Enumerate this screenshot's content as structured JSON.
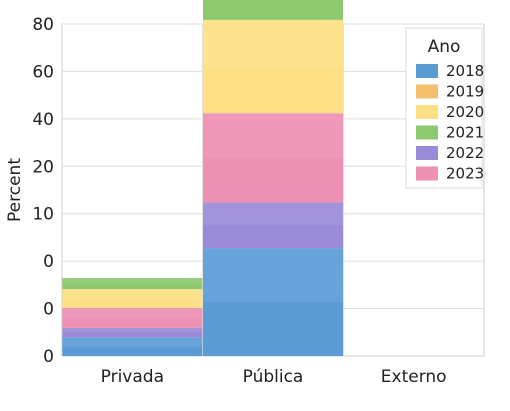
{
  "chart_data": {
    "type": "bar",
    "stacked": true,
    "categories": [
      "Privada",
      "Pública",
      "Externo"
    ],
    "ylabel": "Percent",
    "y_tick_labels": [
      "0",
      "0",
      "0",
      "10",
      "20",
      "40",
      "60",
      "80"
    ],
    "grid": true,
    "legend": {
      "title": "Ano",
      "placement": "top-right",
      "entries": [
        "2018",
        "2019",
        "2020",
        "2021",
        "2022",
        "2023"
      ]
    },
    "series": [
      {
        "name": "2018",
        "color": "#5b9bd5",
        "values": [
          4.5,
          26,
          0
        ]
      },
      {
        "name": "2019",
        "color": "#f5c06e",
        "values": [
          0,
          0,
          0
        ]
      },
      {
        "name": "2020",
        "color": "#fde085",
        "values": [
          4.5,
          22.5,
          0
        ]
      },
      {
        "name": "2021",
        "color": "#8cc96f",
        "values": [
          2.7,
          23.5,
          0
        ]
      },
      {
        "name": "2022",
        "color": "#9b8ad7",
        "values": [
          2.3,
          11,
          0
        ]
      },
      {
        "name": "2023",
        "color": "#ee8fb4",
        "values": [
          4.8,
          21.5,
          0
        ]
      }
    ],
    "stack_order": [
      "2018",
      "2022",
      "2023",
      "2020",
      "2021"
    ]
  }
}
